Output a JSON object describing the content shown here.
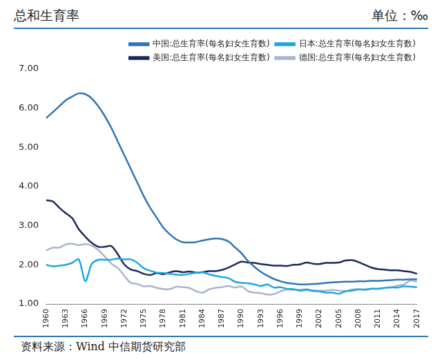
{
  "chart_data": {
    "type": "line",
    "title": "总和生育率",
    "subtitle": "单位：‰",
    "source": "资料来源：Wind 中信期货研究部",
    "categories": [
      "1960",
      null,
      null,
      "1963",
      null,
      null,
      "1966",
      null,
      null,
      "1969",
      null,
      null,
      "1972",
      null,
      null,
      "1975",
      null,
      null,
      "1978",
      null,
      null,
      "1981",
      null,
      null,
      "1984",
      null,
      null,
      "1987",
      null,
      null,
      "1990",
      null,
      null,
      "1993",
      null,
      null,
      "1996",
      null,
      null,
      "1999",
      null,
      null,
      "2002",
      null,
      null,
      "2005",
      null,
      null,
      "2008",
      null,
      null,
      "2011",
      null,
      null,
      "2014",
      null,
      null,
      "2017"
    ],
    "series": [
      {
        "name": "中国:总生育率(每名妇女生育数)",
        "color": "#2e75b6",
        "values": [
          5.75,
          5.9,
          6.05,
          6.2,
          6.3,
          6.38,
          6.36,
          6.25,
          6.05,
          5.8,
          5.5,
          5.15,
          4.8,
          4.45,
          4.1,
          3.75,
          3.45,
          3.2,
          2.95,
          2.78,
          2.65,
          2.58,
          2.57,
          2.58,
          2.62,
          2.65,
          2.67,
          2.66,
          2.6,
          2.45,
          2.3,
          2.1,
          1.95,
          1.82,
          1.72,
          1.64,
          1.58,
          1.54,
          1.52,
          1.5,
          1.5,
          1.51,
          1.52,
          1.54,
          1.55,
          1.56,
          1.57,
          1.57,
          1.58,
          1.58,
          1.59,
          1.59,
          1.6,
          1.61,
          1.62,
          1.62,
          1.63,
          1.63
        ]
      },
      {
        "name": "日本:总生育率(每名妇女生育数)",
        "color": "#1ba7e1",
        "values": [
          2.0,
          1.96,
          1.98,
          2.0,
          2.05,
          2.14,
          1.58,
          2.02,
          2.13,
          2.13,
          2.13,
          2.16,
          2.14,
          2.14,
          2.05,
          1.91,
          1.85,
          1.8,
          1.79,
          1.77,
          1.75,
          1.74,
          1.77,
          1.8,
          1.81,
          1.76,
          1.72,
          1.69,
          1.66,
          1.57,
          1.54,
          1.53,
          1.5,
          1.46,
          1.5,
          1.42,
          1.43,
          1.39,
          1.38,
          1.34,
          1.36,
          1.33,
          1.32,
          1.29,
          1.29,
          1.26,
          1.32,
          1.34,
          1.37,
          1.37,
          1.39,
          1.39,
          1.41,
          1.43,
          1.42,
          1.45,
          1.44,
          1.43
        ]
      },
      {
        "name": "美国:总生育率(每名妇女生育数)",
        "color": "#1b2a5a",
        "values": [
          3.65,
          3.62,
          3.46,
          3.32,
          3.19,
          2.91,
          2.72,
          2.56,
          2.46,
          2.46,
          2.48,
          2.27,
          2.01,
          1.88,
          1.84,
          1.77,
          1.74,
          1.79,
          1.76,
          1.81,
          1.84,
          1.81,
          1.83,
          1.8,
          1.81,
          1.84,
          1.84,
          1.87,
          1.93,
          2.01,
          2.08,
          2.06,
          2.05,
          2.02,
          2.0,
          1.98,
          1.98,
          1.97,
          2.0,
          2.01,
          2.06,
          2.03,
          2.02,
          2.05,
          2.05,
          2.06,
          2.11,
          2.12,
          2.07,
          2.0,
          1.93,
          1.89,
          1.88,
          1.86,
          1.86,
          1.84,
          1.82,
          1.77
        ]
      },
      {
        "name": "德国:总生育率(每名妇女生育数)",
        "color": "#a9b4cf",
        "values": [
          2.37,
          2.44,
          2.44,
          2.52,
          2.54,
          2.5,
          2.53,
          2.49,
          2.38,
          2.21,
          2.03,
          1.92,
          1.72,
          1.54,
          1.51,
          1.45,
          1.46,
          1.41,
          1.38,
          1.38,
          1.44,
          1.43,
          1.41,
          1.33,
          1.29,
          1.37,
          1.41,
          1.43,
          1.46,
          1.42,
          1.45,
          1.33,
          1.29,
          1.28,
          1.24,
          1.25,
          1.32,
          1.37,
          1.36,
          1.36,
          1.38,
          1.35,
          1.34,
          1.34,
          1.36,
          1.34,
          1.33,
          1.37,
          1.38,
          1.36,
          1.39,
          1.39,
          1.41,
          1.42,
          1.47,
          1.5,
          1.6,
          1.57
        ]
      }
    ],
    "ylim": [
      1,
      7
    ],
    "yticks": [
      {
        "value": 1,
        "label": "1.00"
      },
      {
        "value": 2,
        "label": "2.00"
      },
      {
        "value": 3,
        "label": "3.00"
      },
      {
        "value": 4,
        "label": "4.00"
      },
      {
        "value": 5,
        "label": "5.00"
      },
      {
        "value": 6,
        "label": "6.00"
      },
      {
        "value": 7,
        "label": "7.00"
      }
    ],
    "grid": false,
    "legend": "top-right"
  }
}
